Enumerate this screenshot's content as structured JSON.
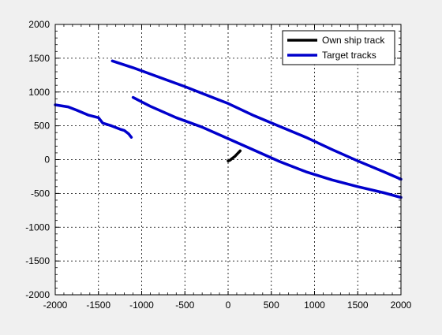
{
  "chart_data": {
    "type": "line",
    "xlim": [
      -2000,
      2000
    ],
    "ylim": [
      -2000,
      2000
    ],
    "x_ticks": [
      -2000,
      -1500,
      -1000,
      -500,
      0,
      500,
      1000,
      1500,
      2000
    ],
    "y_ticks": [
      -2000,
      -1500,
      -1000,
      -500,
      0,
      500,
      1000,
      1500,
      2000
    ],
    "x_tick_labels": [
      "-2000",
      "-1500",
      "-1000",
      "-500",
      "0",
      "500",
      "1000",
      "1500",
      "2000"
    ],
    "y_tick_labels": [
      "-2000",
      "-1500",
      "-1000",
      "-500",
      "0",
      "500",
      "1000",
      "1500",
      "2000"
    ],
    "grid": true,
    "legend_position": "top-right",
    "legend": [
      {
        "label": "Own ship track",
        "color": "#000000"
      },
      {
        "label": "Target tracks",
        "color": "#0000cc"
      }
    ],
    "series": [
      {
        "role": "own",
        "color": "#000000",
        "x": [
          0,
          20,
          50,
          80,
          110,
          140
        ],
        "y": [
          -20,
          -10,
          20,
          50,
          90,
          130
        ]
      },
      {
        "role": "target",
        "color": "#0000cc",
        "x": [
          -1340,
          -1100,
          -800,
          -500,
          -200,
          0,
          300,
          600,
          900,
          1200,
          1500,
          1800,
          2000
        ],
        "y": [
          1460,
          1360,
          1220,
          1080,
          930,
          830,
          650,
          490,
          330,
          150,
          -20,
          -180,
          -290
        ]
      },
      {
        "role": "target",
        "color": "#0000cc",
        "x": [
          -1100,
          -900,
          -600,
          -300,
          0,
          300,
          600,
          900,
          1200,
          1500,
          1800,
          2000
        ],
        "y": [
          920,
          790,
          620,
          480,
          310,
          140,
          -30,
          -180,
          -300,
          -400,
          -490,
          -560
        ]
      },
      {
        "role": "target",
        "color": "#0000cc",
        "x": [
          -2000,
          -1850,
          -1750,
          -1620,
          -1500,
          -1450,
          -1350,
          -1250,
          -1200,
          -1150,
          -1120
        ],
        "y": [
          810,
          780,
          730,
          660,
          620,
          540,
          500,
          450,
          430,
          380,
          330
        ]
      }
    ]
  }
}
